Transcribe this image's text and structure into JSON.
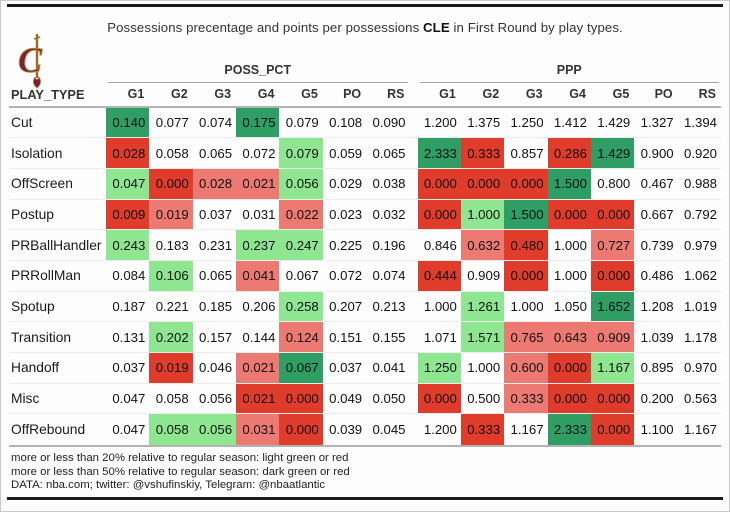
{
  "title": {
    "prefix": "Possessions precentage and points per possessions ",
    "team": "CLE",
    "suffix": " in First Round by play types."
  },
  "logo_name": "cleveland-cavaliers-logo",
  "cell_colors": {
    "dg": "#2f9e64",
    "lg": "#8ee690",
    "lr": "#ec7a72",
    "dr": "#e03c2c"
  },
  "table": {
    "row_header": "PLAY_TYPE",
    "groups": [
      {
        "label": "POSS_PCT",
        "cols": [
          "G1",
          "G2",
          "G3",
          "G4",
          "G5",
          "PO",
          "RS"
        ]
      },
      {
        "label": "PPP",
        "cols": [
          "G1",
          "G2",
          "G3",
          "G4",
          "G5",
          "PO",
          "RS"
        ]
      }
    ]
  },
  "footer": {
    "lines": [
      "more or less than 20% relative to regular season: light green or red",
      "more or less than 50% relative to regular season: dark green or red",
      "DATA: nba.com; twitter: @vshufinskiy, Telegram: @nbaatlantic"
    ]
  },
  "chart_data": {
    "type": "table",
    "title": "Possessions precentage and points per possessions CLE in First Round by play types.",
    "column_groups": [
      "POSS_PCT",
      "PPP"
    ],
    "columns": [
      "G1",
      "G2",
      "G3",
      "G4",
      "G5",
      "PO",
      "RS"
    ],
    "color_legend": {
      "lg": "more than 20% above regular season (light green)",
      "lr": "more than 20% below regular season (light red)",
      "dg": "more than 50% above regular season (dark green)",
      "dr": "more than 50% below regular season (dark red)"
    },
    "rows": [
      {
        "play_type": "Cut",
        "poss_pct": [
          {
            "v": "0.140",
            "c": "dg"
          },
          {
            "v": "0.077",
            "c": ""
          },
          {
            "v": "0.074",
            "c": ""
          },
          {
            "v": "0.175",
            "c": "dg"
          },
          {
            "v": "0.079",
            "c": ""
          },
          {
            "v": "0.108",
            "c": ""
          },
          {
            "v": "0.090",
            "c": ""
          }
        ],
        "ppp": [
          {
            "v": "1.200",
            "c": ""
          },
          {
            "v": "1.375",
            "c": ""
          },
          {
            "v": "1.250",
            "c": ""
          },
          {
            "v": "1.412",
            "c": ""
          },
          {
            "v": "1.429",
            "c": ""
          },
          {
            "v": "1.327",
            "c": ""
          },
          {
            "v": "1.394",
            "c": ""
          }
        ]
      },
      {
        "play_type": "Isolation",
        "poss_pct": [
          {
            "v": "0.028",
            "c": "dr"
          },
          {
            "v": "0.058",
            "c": ""
          },
          {
            "v": "0.065",
            "c": ""
          },
          {
            "v": "0.072",
            "c": ""
          },
          {
            "v": "0.079",
            "c": "lg"
          },
          {
            "v": "0.059",
            "c": ""
          },
          {
            "v": "0.065",
            "c": ""
          }
        ],
        "ppp": [
          {
            "v": "2.333",
            "c": "dg"
          },
          {
            "v": "0.333",
            "c": "dr"
          },
          {
            "v": "0.857",
            "c": ""
          },
          {
            "v": "0.286",
            "c": "dr"
          },
          {
            "v": "1.429",
            "c": "dg"
          },
          {
            "v": "0.900",
            "c": ""
          },
          {
            "v": "0.920",
            "c": ""
          }
        ]
      },
      {
        "play_type": "OffScreen",
        "poss_pct": [
          {
            "v": "0.047",
            "c": "lg"
          },
          {
            "v": "0.000",
            "c": "dr"
          },
          {
            "v": "0.028",
            "c": "lr"
          },
          {
            "v": "0.021",
            "c": "lr"
          },
          {
            "v": "0.056",
            "c": "lg"
          },
          {
            "v": "0.029",
            "c": ""
          },
          {
            "v": "0.038",
            "c": ""
          }
        ],
        "ppp": [
          {
            "v": "0.000",
            "c": "dr"
          },
          {
            "v": "0.000",
            "c": "dr"
          },
          {
            "v": "0.000",
            "c": "dr"
          },
          {
            "v": "1.500",
            "c": "dg"
          },
          {
            "v": "0.800",
            "c": ""
          },
          {
            "v": "0.467",
            "c": ""
          },
          {
            "v": "0.988",
            "c": ""
          }
        ]
      },
      {
        "play_type": "Postup",
        "poss_pct": [
          {
            "v": "0.009",
            "c": "dr"
          },
          {
            "v": "0.019",
            "c": "lr"
          },
          {
            "v": "0.037",
            "c": ""
          },
          {
            "v": "0.031",
            "c": ""
          },
          {
            "v": "0.022",
            "c": "lr"
          },
          {
            "v": "0.023",
            "c": ""
          },
          {
            "v": "0.032",
            "c": ""
          }
        ],
        "ppp": [
          {
            "v": "0.000",
            "c": "dr"
          },
          {
            "v": "1.000",
            "c": "lg"
          },
          {
            "v": "1.500",
            "c": "dg"
          },
          {
            "v": "0.000",
            "c": "dr"
          },
          {
            "v": "0.000",
            "c": "dr"
          },
          {
            "v": "0.667",
            "c": ""
          },
          {
            "v": "0.792",
            "c": ""
          }
        ]
      },
      {
        "play_type": "PRBallHandler",
        "poss_pct": [
          {
            "v": "0.243",
            "c": "lg"
          },
          {
            "v": "0.183",
            "c": ""
          },
          {
            "v": "0.231",
            "c": ""
          },
          {
            "v": "0.237",
            "c": "lg"
          },
          {
            "v": "0.247",
            "c": "lg"
          },
          {
            "v": "0.225",
            "c": ""
          },
          {
            "v": "0.196",
            "c": ""
          }
        ],
        "ppp": [
          {
            "v": "0.846",
            "c": ""
          },
          {
            "v": "0.632",
            "c": "lr"
          },
          {
            "v": "0.480",
            "c": "dr"
          },
          {
            "v": "1.000",
            "c": ""
          },
          {
            "v": "0.727",
            "c": "lr"
          },
          {
            "v": "0.739",
            "c": ""
          },
          {
            "v": "0.979",
            "c": ""
          }
        ]
      },
      {
        "play_type": "PRRollMan",
        "poss_pct": [
          {
            "v": "0.084",
            "c": ""
          },
          {
            "v": "0.106",
            "c": "lg"
          },
          {
            "v": "0.065",
            "c": ""
          },
          {
            "v": "0.041",
            "c": "lr"
          },
          {
            "v": "0.067",
            "c": ""
          },
          {
            "v": "0.072",
            "c": ""
          },
          {
            "v": "0.074",
            "c": ""
          }
        ],
        "ppp": [
          {
            "v": "0.444",
            "c": "dr"
          },
          {
            "v": "0.909",
            "c": ""
          },
          {
            "v": "0.000",
            "c": "dr"
          },
          {
            "v": "1.000",
            "c": ""
          },
          {
            "v": "0.000",
            "c": "dr"
          },
          {
            "v": "0.486",
            "c": ""
          },
          {
            "v": "1.062",
            "c": ""
          }
        ]
      },
      {
        "play_type": "Spotup",
        "poss_pct": [
          {
            "v": "0.187",
            "c": ""
          },
          {
            "v": "0.221",
            "c": ""
          },
          {
            "v": "0.185",
            "c": ""
          },
          {
            "v": "0.206",
            "c": ""
          },
          {
            "v": "0.258",
            "c": "lg"
          },
          {
            "v": "0.207",
            "c": ""
          },
          {
            "v": "0.213",
            "c": ""
          }
        ],
        "ppp": [
          {
            "v": "1.000",
            "c": ""
          },
          {
            "v": "1.261",
            "c": "lg"
          },
          {
            "v": "1.000",
            "c": ""
          },
          {
            "v": "1.050",
            "c": ""
          },
          {
            "v": "1.652",
            "c": "dg"
          },
          {
            "v": "1.208",
            "c": ""
          },
          {
            "v": "1.019",
            "c": ""
          }
        ]
      },
      {
        "play_type": "Transition",
        "poss_pct": [
          {
            "v": "0.131",
            "c": ""
          },
          {
            "v": "0.202",
            "c": "lg"
          },
          {
            "v": "0.157",
            "c": ""
          },
          {
            "v": "0.144",
            "c": ""
          },
          {
            "v": "0.124",
            "c": "lr"
          },
          {
            "v": "0.151",
            "c": ""
          },
          {
            "v": "0.155",
            "c": ""
          }
        ],
        "ppp": [
          {
            "v": "1.071",
            "c": ""
          },
          {
            "v": "1.571",
            "c": "lg"
          },
          {
            "v": "0.765",
            "c": "lr"
          },
          {
            "v": "0.643",
            "c": "lr"
          },
          {
            "v": "0.909",
            "c": "lr"
          },
          {
            "v": "1.039",
            "c": ""
          },
          {
            "v": "1.178",
            "c": ""
          }
        ]
      },
      {
        "play_type": "Handoff",
        "poss_pct": [
          {
            "v": "0.037",
            "c": ""
          },
          {
            "v": "0.019",
            "c": "dr"
          },
          {
            "v": "0.046",
            "c": ""
          },
          {
            "v": "0.021",
            "c": "lr"
          },
          {
            "v": "0.067",
            "c": "dg"
          },
          {
            "v": "0.037",
            "c": ""
          },
          {
            "v": "0.041",
            "c": ""
          }
        ],
        "ppp": [
          {
            "v": "1.250",
            "c": "lg"
          },
          {
            "v": "1.000",
            "c": ""
          },
          {
            "v": "0.600",
            "c": "lr"
          },
          {
            "v": "0.000",
            "c": "dr"
          },
          {
            "v": "1.167",
            "c": "lg"
          },
          {
            "v": "0.895",
            "c": ""
          },
          {
            "v": "0.970",
            "c": ""
          }
        ]
      },
      {
        "play_type": "Misc",
        "poss_pct": [
          {
            "v": "0.047",
            "c": ""
          },
          {
            "v": "0.058",
            "c": ""
          },
          {
            "v": "0.056",
            "c": ""
          },
          {
            "v": "0.021",
            "c": "dr"
          },
          {
            "v": "0.000",
            "c": "dr"
          },
          {
            "v": "0.049",
            "c": ""
          },
          {
            "v": "0.050",
            "c": ""
          }
        ],
        "ppp": [
          {
            "v": "0.000",
            "c": "dr"
          },
          {
            "v": "0.500",
            "c": ""
          },
          {
            "v": "0.333",
            "c": "lr"
          },
          {
            "v": "0.000",
            "c": "dr"
          },
          {
            "v": "0.000",
            "c": "dr"
          },
          {
            "v": "0.200",
            "c": ""
          },
          {
            "v": "0.563",
            "c": ""
          }
        ]
      },
      {
        "play_type": "OffRebound",
        "poss_pct": [
          {
            "v": "0.047",
            "c": ""
          },
          {
            "v": "0.058",
            "c": "lg"
          },
          {
            "v": "0.056",
            "c": "lg"
          },
          {
            "v": "0.031",
            "c": "lr"
          },
          {
            "v": "0.000",
            "c": "dr"
          },
          {
            "v": "0.039",
            "c": ""
          },
          {
            "v": "0.045",
            "c": ""
          }
        ],
        "ppp": [
          {
            "v": "1.200",
            "c": ""
          },
          {
            "v": "0.333",
            "c": "dr"
          },
          {
            "v": "1.167",
            "c": ""
          },
          {
            "v": "2.333",
            "c": "dg"
          },
          {
            "v": "0.000",
            "c": "dr"
          },
          {
            "v": "1.100",
            "c": ""
          },
          {
            "v": "1.167",
            "c": ""
          }
        ]
      }
    ]
  }
}
